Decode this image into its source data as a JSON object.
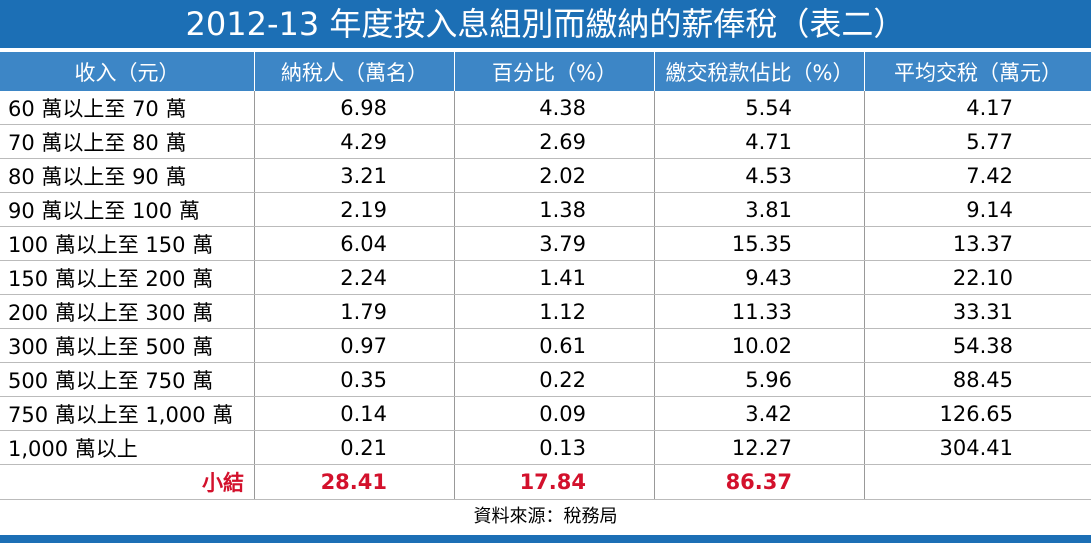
{
  "title": "2012-13 年度按入息組別而繳納的薪俸稅（表二）",
  "table": {
    "columns": [
      "收入（元）",
      "納稅人（萬名）",
      "百分比（%）",
      "繳交稅款佔比（%）",
      "平均交稅（萬元）"
    ],
    "rows": [
      [
        "60 萬以上至 70 萬",
        "6.98",
        "4.38",
        "5.54",
        "4.17"
      ],
      [
        "70 萬以上至 80 萬",
        "4.29",
        "2.69",
        "4.71",
        "5.77"
      ],
      [
        "80 萬以上至 90 萬",
        "3.21",
        "2.02",
        "4.53",
        "7.42"
      ],
      [
        "90 萬以上至 100 萬",
        "2.19",
        "1.38",
        "3.81",
        "9.14"
      ],
      [
        "100 萬以上至 150 萬",
        "6.04",
        "3.79",
        "15.35",
        "13.37"
      ],
      [
        "150 萬以上至 200 萬",
        "2.24",
        "1.41",
        "9.43",
        "22.10"
      ],
      [
        "200 萬以上至 300 萬",
        "1.79",
        "1.12",
        "11.33",
        "33.31"
      ],
      [
        "300 萬以上至 500 萬",
        "0.97",
        "0.61",
        "10.02",
        "54.38"
      ],
      [
        "500 萬以上至 750 萬",
        "0.35",
        "0.22",
        "5.96",
        "88.45"
      ],
      [
        "750 萬以上至 1,000 萬",
        "0.14",
        "0.09",
        "3.42",
        "126.65"
      ],
      [
        "1,000 萬以上",
        "0.21",
        "0.13",
        "12.27",
        "304.41"
      ]
    ],
    "subtotal": {
      "label": "小結",
      "values": [
        "28.41",
        "17.84",
        "86.37"
      ]
    }
  },
  "source": "資料來源：稅務局"
}
